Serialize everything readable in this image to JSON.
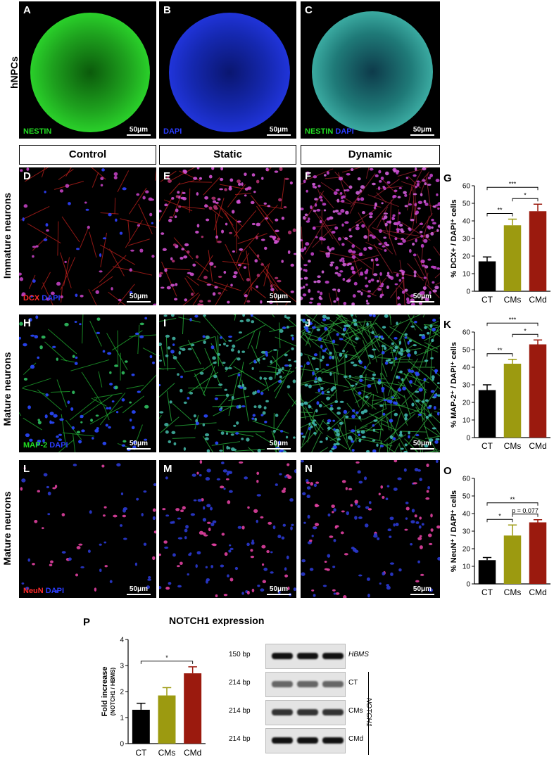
{
  "row_labels": {
    "hnpcs": "hNPCs",
    "immature": "Immature neurons",
    "mature1": "Mature neurons",
    "mature2": "Mature neurons"
  },
  "conditions": [
    "Control",
    "Static",
    "Dynamic"
  ],
  "panels": {
    "A": {
      "letter": "A",
      "stain": [
        "NESTIN"
      ],
      "scale": "50μm"
    },
    "B": {
      "letter": "B",
      "stain": [
        "DAPI"
      ],
      "scale": "50μm"
    },
    "C": {
      "letter": "C",
      "stain": [
        "NESTIN",
        "DAPI"
      ],
      "scale": "50μm"
    },
    "D": {
      "letter": "D",
      "stain": [
        "DCX",
        "DAPI"
      ],
      "scale": "50μm"
    },
    "E": {
      "letter": "E",
      "scale": "50μm"
    },
    "F": {
      "letter": "F",
      "scale": "50μm"
    },
    "H": {
      "letter": "H",
      "stain": [
        "MAP-2",
        "DAPI"
      ],
      "scale": "50μm"
    },
    "I": {
      "letter": "I",
      "scale": "50μm"
    },
    "J": {
      "letter": "J",
      "scale": "50μm"
    },
    "L": {
      "letter": "L",
      "stain": [
        "NeuN",
        "DAPI"
      ],
      "scale": "50μm"
    },
    "M": {
      "letter": "M",
      "scale": "50μm"
    },
    "N": {
      "letter": "N",
      "scale": "50μm"
    }
  },
  "colors": {
    "ct": "#000000",
    "cms": "#9c9a10",
    "cmd": "#9b1a0e",
    "nestin": "#22dd22",
    "dapi": "#2a3cff",
    "red": "#ff2a2a",
    "map2": "#22dd22",
    "neun": "#ff2a2a"
  },
  "chart_data": [
    {
      "panel": "G",
      "type": "bar",
      "categories": [
        "CT",
        "CMs",
        "CMd"
      ],
      "values": [
        17,
        37.5,
        45.5
      ],
      "errors": [
        2.5,
        3.5,
        4
      ],
      "ylabel": "% DCX+ / DAPI⁺ cells",
      "ylim": [
        0,
        60
      ],
      "yticks": [
        0,
        10,
        20,
        30,
        40,
        50,
        60
      ],
      "significance": [
        {
          "from": 1,
          "to": 2,
          "label": "*"
        },
        {
          "from": 0,
          "to": 1,
          "label": "**"
        },
        {
          "from": 0,
          "to": 2,
          "label": "***"
        }
      ]
    },
    {
      "panel": "K",
      "type": "bar",
      "categories": [
        "CT",
        "CMs",
        "CMd"
      ],
      "values": [
        27,
        42,
        53
      ],
      "errors": [
        3,
        2.5,
        2.5
      ],
      "ylabel": "% MAP-2⁺ / DAPI⁺ cells",
      "ylim": [
        0,
        60
      ],
      "yticks": [
        0,
        10,
        20,
        30,
        40,
        50,
        60
      ],
      "significance": [
        {
          "from": 1,
          "to": 2,
          "label": "*"
        },
        {
          "from": 0,
          "to": 1,
          "label": "**"
        },
        {
          "from": 0,
          "to": 2,
          "label": "***"
        }
      ]
    },
    {
      "panel": "O",
      "type": "bar",
      "categories": [
        "CT",
        "CMs",
        "CMd"
      ],
      "values": [
        13.5,
        27.5,
        35
      ],
      "errors": [
        1.5,
        6,
        1.5
      ],
      "ylabel": "% NeuN⁺ / DAPI⁺ cells",
      "ylim": [
        0,
        60
      ],
      "yticks": [
        0,
        10,
        20,
        30,
        40,
        50,
        60
      ],
      "significance": [
        {
          "from": 1,
          "to": 2,
          "label": "p = 0.077"
        },
        {
          "from": 0,
          "to": 1,
          "label": "*"
        },
        {
          "from": 0,
          "to": 2,
          "label": "**"
        }
      ]
    },
    {
      "panel": "P",
      "type": "bar",
      "title": "NOTCH1 expression",
      "categories": [
        "CT",
        "CMs",
        "CMd"
      ],
      "values": [
        1.3,
        1.85,
        2.7
      ],
      "errors": [
        0.25,
        0.3,
        0.25
      ],
      "ylabel": "Fold increase",
      "ylabel2": "(NOTCH1 / HBMS)",
      "ylim": [
        0,
        4
      ],
      "yticks": [
        0,
        1,
        2,
        3,
        4
      ],
      "significance": [
        {
          "from": 0,
          "to": 2,
          "label": "*"
        }
      ]
    }
  ],
  "gel": {
    "letter": "P",
    "title": "NOTCH1 expression",
    "lanes": [
      {
        "size": "150 bp",
        "label": "HBMS"
      },
      {
        "size": "214 bp",
        "label": "CT"
      },
      {
        "size": "214 bp",
        "label": "CMs"
      },
      {
        "size": "214 bp",
        "label": "CMd"
      }
    ],
    "group_label": "NOTCH1"
  }
}
